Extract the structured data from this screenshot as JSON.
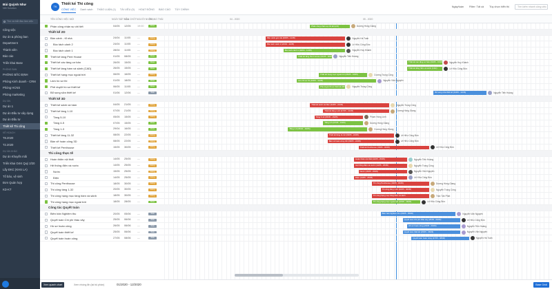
{
  "sidebar": {
    "user_name": "Bùi Quỳnh Như",
    "user_sub": "NM Solution",
    "search_placeholder": "Tìm và bắt đầu làm việc",
    "items": [
      {
        "label": "Công việc",
        "section": ""
      },
      {
        "label": "Dự án & phòng ban",
        "section": ""
      },
      {
        "label": "Department",
        "section": ""
      },
      {
        "label": "Thành viên",
        "section": ""
      },
      {
        "label": "Báo cáo",
        "section": ""
      },
      {
        "label": "Triển khai Base",
        "section": ""
      },
      {
        "label": "PHÒNG BẮC ĐỊNH",
        "section": "PHÒNG BAN"
      },
      {
        "label": "Phòng Kinh doanh - CRM",
        "section": ""
      },
      {
        "label": "Phòng HCNS",
        "section": ""
      },
      {
        "label": "Phòng marketing",
        "section": ""
      },
      {
        "label": "Dự án 1",
        "section": "DỰ ÁN"
      },
      {
        "label": "Dự án Đầu tư xây dựng",
        "section": ""
      },
      {
        "label": "Dự án Đầu tư",
        "section": ""
      },
      {
        "label": "Thiết kế Thi công",
        "section": ""
      },
      {
        "label": "T8.2020",
        "section": "KẾ HOẠCH"
      },
      {
        "label": "T2.2020",
        "section": ""
      },
      {
        "label": "Dự án Khuyến mãi",
        "section": "DỰ ÁN KHÁC"
      },
      {
        "label": "Triển khai GKK Quý 2/20",
        "section": ""
      },
      {
        "label": "Lấy ĐKC (KHS LA)",
        "section": ""
      },
      {
        "label": "Tổ bảo, vệ sinh",
        "section": ""
      },
      {
        "label": "Đơn Quản hợp",
        "section": ""
      },
      {
        "label": "KD-KT",
        "section": ""
      }
    ]
  },
  "header": {
    "title": "Thiết kế Thi công",
    "icon_text": "TK",
    "tabs": [
      "CÔNG VIỆC",
      "THẢO LUẬN (1)",
      "TÀI LIỆU (0)",
      "HOẠT ĐỘNG",
      "BÁO CÁO",
      "TÙY CHỈNH"
    ],
    "sub_tab": "Danh sách",
    "date_ctl": "Ngày/tuần",
    "filter_ctl": "Filter: Tất cả",
    "display_ctl": "Tùy chọn hiển thị",
    "search_placeholder": "Tìm kiếm nhanh công việc"
  },
  "columns": {
    "name": "TÊN CÔNG VIỆC MỚI",
    "start": "NGÀY BẮT ĐẦU",
    "end": "HẠN CHÓT",
    "assignee": "NGƯỜI NHẬN",
    "status": "TRẠNG THÁI"
  },
  "months": [
    "04 - 2020",
    "05 - 2020"
  ],
  "rows": [
    {
      "type": "task",
      "name": "Phần công nhận sự chi tiết",
      "start": "04/05",
      "end": "12/05",
      "end2": "19:00",
      "done": true,
      "status": "Done",
      "bar_color": "#7cc242",
      "bar_label": "Phân công nhân sự chi tiết (2/2)",
      "owner": "Dương Hồng Giang",
      "avatar": "#c7a97a"
    },
    {
      "type": "group",
      "name": "Thiết kế 2D"
    },
    {
      "type": "task",
      "name": "Bản cảnh - tổ nhà",
      "start": "24/04",
      "end": "11/05",
      "end2": "",
      "done": false,
      "status": "Doing",
      "bar_color": "#d9433f",
      "bar_label": "Bản cảnh góc trái (08/05 - 11/05)",
      "owner": "Nguyễn Hà Tuấn",
      "avatar": "#333"
    },
    {
      "type": "sub",
      "name": "Bóc tách cảnh 2",
      "start": "24/04",
      "end": "11/05",
      "end2": "",
      "done": false,
      "status": "Doing",
      "bar_color": "#d9433f",
      "bar_label": "Bóc tách cảnh 2 (24/04 - 11/05)",
      "owner": "Lê Hữu Công Đức",
      "avatar": "#333"
    },
    {
      "type": "sub",
      "name": "Bóc tách cảnh 1",
      "start": "28/04",
      "end": "11/05",
      "end2": "",
      "done": false,
      "status": "Doing",
      "bar_color": "#7cc242",
      "bar_label": "Bóc tách cảnh 1 (28/04 - 11/05)",
      "owner": "Nguyễn Huy Khánh",
      "avatar": "#555"
    },
    {
      "type": "task",
      "name": "Thiết kế tầng Pent House",
      "start": "01/05",
      "end": "08/05",
      "end2": "",
      "done": true,
      "status": "Done",
      "bar_color": "#7cc242",
      "bar_label": "Thiết kế tầng Pent House (01/05 - 08/05)",
      "owner": "Nguyễn Tiến Hoàng",
      "avatar": "#9aa0c8"
    },
    {
      "type": "task",
      "name": "Thiết kế các tầng cơ bản",
      "start": "26/05",
      "end": "15/05",
      "end2": "",
      "done": true,
      "status": "Done",
      "bar_color": "#7cc242",
      "bar_label": "Thiết kế các tầng cơ bản (06/05 - 15/05)",
      "owner": "Nguyễn Huy Khánh",
      "avatar": "#c24b4b"
    },
    {
      "type": "task",
      "name": "Thiết kế tầng hầm và sảnh (CAD)",
      "start": "26/05",
      "end": "15/05",
      "end2": "",
      "done": true,
      "status": "Done",
      "bar_color": "#7cc242",
      "bar_label": "Thiết kế tầng hầm và sảnh (CAD)",
      "owner": "Lê Hữu Công Đức",
      "avatar": "#333"
    },
    {
      "type": "task",
      "name": "Thiết kế hạng mục ngoài trời",
      "start": "06/05",
      "end": "16/05",
      "end2": "",
      "done": false,
      "status": "Doing",
      "bar_color": "#7cc242",
      "bar_label": "Thiết kế hạng mục ngoài trời (06/05 - 16/05)",
      "owner": "Dương Trọng Công",
      "avatar": "#e8d9b0"
    },
    {
      "type": "task",
      "name": "Làm hồ sơ thi",
      "start": "01/05",
      "end": "18/05",
      "end2": "",
      "done": true,
      "status": "Done",
      "bar_color": "#7cc242",
      "bar_label": "Làm hồ sơ thi (03/05 - 11/05)",
      "owner": "Nguyễn Văn Nguyên",
      "avatar": "#a79ad0"
    },
    {
      "type": "task",
      "name": "Phê duyệt hồ sơ thiết kế",
      "start": "06/05",
      "end": "11/05",
      "end2": "",
      "done": true,
      "status": "Done",
      "bar_color": "#7cc242",
      "bar_label": "Phê duyệt hồ sơ thiết kế (06/05 - 11/05)",
      "owner": "Nguyễn Trọng Công",
      "avatar": "#e8d9b0"
    },
    {
      "type": "task",
      "name": "Bổ sung sửa thiết kế",
      "start": "01/06",
      "end": "12/06",
      "end2": "",
      "done": false,
      "status": "Todo",
      "bar_color": "#4a8fdc",
      "bar_label": "Bổ sung sửa thiết kế (01/06 - 12/06)",
      "owner": "Nguyễn Tiến Hoàng",
      "avatar": "#9aa0c8"
    },
    {
      "type": "group",
      "name": "Thiết kế 3D"
    },
    {
      "type": "task",
      "name": "Thiết kế sảnh và hầm",
      "start": "04/05",
      "end": "21/05",
      "end2": "",
      "done": false,
      "status": "Doing",
      "bar_color": "#d9433f",
      "bar_label": "Thiết kế sảnh và hầm (04/05 - 21/05)",
      "owner": "Nguyễn Trọng Công",
      "avatar": "#e8d9b0"
    },
    {
      "type": "task",
      "name": "Thiết kế tầng 1-10",
      "start": "07/05",
      "end": "21/05",
      "end2": "",
      "done": false,
      "status": "Doing",
      "bar_color": "#d9433f",
      "bar_label": "Thiết kế tầng 1-10 (07/05 - 21/05)",
      "owner": "Dương Hồng Giang",
      "avatar": "#c7a97a"
    },
    {
      "type": "sub",
      "name": "Tầng 5-10",
      "start": "05/05",
      "end": "15/05",
      "end2": "",
      "done": false,
      "status": "Doing",
      "bar_color": "#d9433f",
      "bar_label": "Tầng 5-10 (05/05 - 15/05)",
      "owner": "Phạm Hồng Linh",
      "avatar": "#7a6a5a"
    },
    {
      "type": "sub",
      "name": "Tầng 4-5",
      "start": "07/05",
      "end": "15/05",
      "end2": "",
      "done": true,
      "status": "Done",
      "bar_color": "#7cc242",
      "bar_label": "Tầng 4-5 (07/05 - 15/05)",
      "owner": "Dương Hồng Giang",
      "avatar": "#c7a97a"
    },
    {
      "type": "sub",
      "name": "Tầng 1-3",
      "start": "29/04",
      "end": "16/05",
      "end2": "",
      "done": true,
      "status": "Done",
      "bar_color": "#7cc242",
      "bar_label": "Tầng 1-3 (29/04 - 15/05)",
      "owner": "Dương Hồng Giang",
      "avatar": "#c7a97a"
    },
    {
      "type": "task",
      "name": "Thiết kế tầng 11-32",
      "start": "08/05",
      "end": "22/05",
      "end2": "",
      "done": false,
      "status": "Doing",
      "bar_color": "#d9433f",
      "bar_label": "Thiết kế tầng 11-32 (08/05 - 22/05)",
      "owner": "Lê Hữu Công Đức",
      "avatar": "#333"
    },
    {
      "type": "task",
      "name": "Bản vẽ hoàn công 3D",
      "start": "08/05",
      "end": "22/05",
      "end2": "",
      "done": false,
      "status": "Doing",
      "bar_color": "#d9433f",
      "bar_label": "Bản vẽ hoàn công 3D (08/05 - 22/05)",
      "owner": "Lê Hữu Công Đức",
      "avatar": "#333"
    },
    {
      "type": "task",
      "name": "Thiết kế Penthouse",
      "start": "15/05",
      "end": "30/05",
      "end2": "",
      "done": false,
      "status": "Doing",
      "bar_color": "#d9433f",
      "bar_label": "Thiết kế Penthouse (15/05 - 30/05)",
      "owner": "Lê Hữu Công Đức",
      "avatar": "#333"
    },
    {
      "type": "group",
      "name": "Thi công thực tế"
    },
    {
      "type": "task",
      "name": "Hoàn thiện nội thất",
      "start": "14/05",
      "end": "25/05",
      "end2": "",
      "done": false,
      "status": "Doing",
      "bar_color": "#d9433f",
      "bar_label": "Hoàn thiện nội thất (14/05 - 25/05)",
      "owner": "Nguyễn Tiến Hoàng",
      "avatar": "#9ad0d0"
    },
    {
      "type": "task",
      "name": "Hệ thống điện và nước",
      "start": "14/05",
      "end": "25/05",
      "end2": "",
      "done": false,
      "status": "Doing",
      "bar_color": "#d9433f",
      "bar_label": "Hệ thống điện và nước (14/05 - 25/05)",
      "owner": "Nguyễn Trọng Công",
      "avatar": "#e8d9b0"
    },
    {
      "type": "sub",
      "name": "Nước",
      "start": "15/05",
      "end": "25/05",
      "end2": "",
      "done": false,
      "status": "Doing",
      "bar_color": "#d9433f",
      "bar_label": "Nước (15/05 - 25/05)",
      "owner": "Nguyễn Văn Nguyên",
      "avatar": "#555"
    },
    {
      "type": "sub",
      "name": "Điện",
      "start": "14/05",
      "end": "25/05",
      "end2": "",
      "done": false,
      "status": "Doing",
      "bar_color": "#d9433f",
      "bar_label": "Điện (14/05 - 25/05)",
      "owner": "Lê Hữu Công Đức",
      "avatar": "#9aa0c8"
    },
    {
      "type": "task",
      "name": "Thi công Penthouse",
      "start": "18/05",
      "end": "30/05",
      "end2": "",
      "done": false,
      "status": "Doing",
      "bar_color": "#d9433f",
      "bar_label": "Thi công Penthouse (18/05 - 30/05)",
      "owner": "Dương Hồng Giang",
      "avatar": "#c7a97a"
    },
    {
      "type": "task",
      "name": "Thi công tầng 1-32",
      "start": "20/05",
      "end": "30/05",
      "end2": "",
      "done": false,
      "status": "Doing",
      "bar_color": "#d9433f",
      "bar_label": "Thi công tầng 1-32 (20/05 - 30/05)",
      "owner": "Nguyễn Trọng Công",
      "avatar": "#e8d9b0"
    },
    {
      "type": "task",
      "name": "Thi công hạng mục tầng hầm và sảnh",
      "start": "18/05",
      "end": "30/05",
      "end2": "",
      "done": false,
      "status": "Doing",
      "bar_color": "#d9433f",
      "bar_label": "Thi công hạng mục tầng hầm và sảnh",
      "owner": "Trần Tấn Phát",
      "avatar": "#c7a97a"
    },
    {
      "type": "task",
      "name": "Thi công hạng mục ngoài trời",
      "start": "18/05",
      "end": "28/05",
      "end2": "",
      "done": true,
      "status": "Done",
      "bar_color": "#7cc242",
      "bar_label": "Thi công hạng mục ngoài trời (18/05 - 28/05)",
      "owner": "Lê Hữu Công Đức",
      "avatar": "#333"
    },
    {
      "type": "group",
      "name": "Công tác Quyết toán"
    },
    {
      "type": "task",
      "name": "Biên bản Nghiệm thu",
      "start": "20/05",
      "end": "05/06",
      "end2": "",
      "done": false,
      "status": "Todo",
      "bar_color": "#4a8fdc",
      "bar_label": "Biên bản Nghiệm thu (20/05 - 05/06)",
      "owner": "Nguyễn Văn Nguyên",
      "avatar": "#a79ad0"
    },
    {
      "type": "task",
      "name": "Quyết toán Chi phí thầu xây",
      "start": "25/05",
      "end": "06/06",
      "end2": "",
      "done": false,
      "status": "Todo",
      "bar_color": "#4a8fdc",
      "bar_label": "Quyết toán Chi phí thầu xây (25/05 - 06/06)",
      "owner": "Lê Hữu Công Đức",
      "avatar": "#333"
    },
    {
      "type": "task",
      "name": "Hồ sơ hoàn công",
      "start": "26/05",
      "end": "06/06",
      "end2": "",
      "done": false,
      "status": "Todo",
      "bar_color": "#4a8fdc",
      "bar_label": "Hồ sơ hoàn công (26/05 - 06/06)",
      "owner": "Nguyễn Tiến Hoàng",
      "avatar": "#a79ad0"
    },
    {
      "type": "task",
      "name": "Quyết toán thiết kế",
      "start": "25/05",
      "end": "06/06",
      "end2": "",
      "done": false,
      "status": "Todo",
      "bar_color": "#4a8fdc",
      "bar_label": "Quyết toán thiết kế (25/05 - 06/06)",
      "owner": "Nguyễn Văn Nguyên",
      "avatar": "#a79ad0"
    },
    {
      "type": "task",
      "name": "Quyết toán hoàn công",
      "start": "27/05",
      "end": "08/06",
      "end2": "",
      "done": false,
      "status": "Todo",
      "bar_color": "#4a8fdc",
      "bar_label": "Quyết toán hoàn công (27/05 - 08/06)",
      "owner": "Nguyễn Hà Tuấn",
      "avatar": "#333"
    }
  ],
  "footer": {
    "btn_primary": "Xem quanh chart",
    "btn_secondary": "Xem nhóng ẩn (lại bộ phần)",
    "range": "01/2020 - 12/2020",
    "brand": "Base Gridl"
  }
}
